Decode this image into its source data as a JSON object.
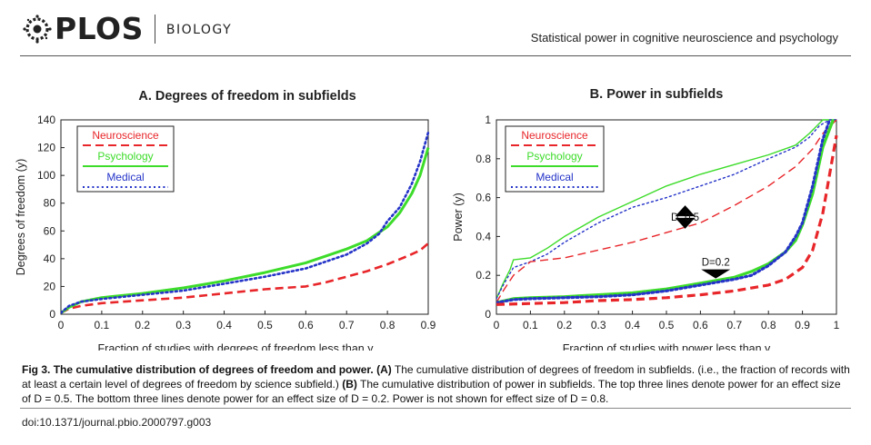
{
  "header": {
    "logo_text": "PLOS",
    "journal": "BIOLOGY",
    "running_title": "Statistical power in cognitive neuroscience and psychology"
  },
  "figure": {
    "caption_label": "Fig 3.",
    "caption_title": "The cumulative distribution of degrees of freedom and power.",
    "caption_a_tag": "(A)",
    "caption_a_text": "The cumulative distribution of degrees of freedom in subfields. (i.e., the fraction of records with at least a certain level of degrees of freedom by science subfield.)",
    "caption_b_tag": "(B)",
    "caption_b_text": "The cumulative distribution of power in subfields. The top three lines denote power for an effect size of D = 0.5. The bottom three lines denote power for an effect size of D = 0.2. Power is not shown for effect size of D = 0.8.",
    "doi": "doi:10.1371/journal.pbio.2000797.g003"
  },
  "colors": {
    "neuroscience": "#e8262a",
    "psychology": "#3ddc2a",
    "medical": "#2433c8",
    "annotation": "#000000"
  },
  "chart_data": [
    {
      "type": "line",
      "title": "A. Degrees of freedom in subfields",
      "xlabel": "Fraction of studies with degrees of freedom less than y",
      "ylabel": "Degrees of freedom (y)",
      "xlim": [
        0,
        0.9
      ],
      "ylim": [
        0,
        140
      ],
      "x_ticks": [
        "0",
        "0.1",
        "0.2",
        "0.3",
        "0.4",
        "0.5",
        "0.6",
        "0.7",
        "0.8",
        "0.9"
      ],
      "y_ticks": [
        "0",
        "20",
        "40",
        "60",
        "80",
        "100",
        "120",
        "140"
      ],
      "legend_position": "top-left",
      "series": [
        {
          "name": "Neuroscience",
          "color": "#e8262a",
          "dash": "dashed",
          "width": 2.6,
          "points": [
            [
              0,
              1
            ],
            [
              0.02,
              4
            ],
            [
              0.05,
              6
            ],
            [
              0.1,
              8
            ],
            [
              0.2,
              10
            ],
            [
              0.3,
              12
            ],
            [
              0.4,
              15
            ],
            [
              0.5,
              18
            ],
            [
              0.6,
              20
            ],
            [
              0.65,
              23
            ],
            [
              0.7,
              27
            ],
            [
              0.75,
              31
            ],
            [
              0.8,
              36
            ],
            [
              0.85,
              42
            ],
            [
              0.88,
              46
            ],
            [
              0.9,
              51
            ]
          ]
        },
        {
          "name": "Psychology",
          "color": "#3ddc2a",
          "dash": "solid",
          "width": 3,
          "points": [
            [
              0,
              1
            ],
            [
              0.02,
              5
            ],
            [
              0.05,
              9
            ],
            [
              0.1,
              12
            ],
            [
              0.2,
              15
            ],
            [
              0.3,
              19
            ],
            [
              0.4,
              24
            ],
            [
              0.5,
              30
            ],
            [
              0.6,
              37
            ],
            [
              0.65,
              42
            ],
            [
              0.7,
              47
            ],
            [
              0.75,
              53
            ],
            [
              0.8,
              63
            ],
            [
              0.83,
              73
            ],
            [
              0.86,
              87
            ],
            [
              0.88,
              100
            ],
            [
              0.9,
              120
            ]
          ]
        },
        {
          "name": "Medical",
          "color": "#2433c8",
          "dash": "dotted",
          "width": 2.6,
          "points": [
            [
              0,
              1
            ],
            [
              0.02,
              6
            ],
            [
              0.05,
              9
            ],
            [
              0.1,
              11
            ],
            [
              0.2,
              14
            ],
            [
              0.3,
              17
            ],
            [
              0.4,
              22
            ],
            [
              0.5,
              27
            ],
            [
              0.6,
              33
            ],
            [
              0.65,
              38
            ],
            [
              0.7,
              43
            ],
            [
              0.75,
              51
            ],
            [
              0.78,
              58
            ],
            [
              0.8,
              67
            ],
            [
              0.83,
              77
            ],
            [
              0.86,
              94
            ],
            [
              0.88,
              110
            ],
            [
              0.9,
              131
            ]
          ]
        }
      ]
    },
    {
      "type": "line",
      "title": "B. Power in subfields",
      "xlabel": "Fraction of studies with power less than y",
      "ylabel": "Power (y)",
      "xlim": [
        0,
        1
      ],
      "ylim": [
        0,
        1
      ],
      "x_ticks": [
        "0",
        "0.1",
        "0.2",
        "0.3",
        "0.4",
        "0.5",
        "0.6",
        "0.7",
        "0.8",
        "0.9",
        "1"
      ],
      "y_ticks": [
        "0",
        "0.2",
        "0.4",
        "0.6",
        "0.8",
        "1"
      ],
      "legend_position": "top-left",
      "annotations": [
        "D=0.5",
        "D=0.2"
      ],
      "series": [
        {
          "name": "Psychology",
          "group": "D=0.5",
          "color": "#3ddc2a",
          "dash": "solid",
          "width": 1.4,
          "points": [
            [
              0,
              0.08
            ],
            [
              0.02,
              0.16
            ],
            [
              0.04,
              0.23
            ],
            [
              0.05,
              0.28
            ],
            [
              0.1,
              0.29
            ],
            [
              0.15,
              0.34
            ],
            [
              0.2,
              0.4
            ],
            [
              0.3,
              0.5
            ],
            [
              0.4,
              0.58
            ],
            [
              0.5,
              0.66
            ],
            [
              0.6,
              0.72
            ],
            [
              0.7,
              0.77
            ],
            [
              0.8,
              0.82
            ],
            [
              0.88,
              0.87
            ],
            [
              0.92,
              0.93
            ],
            [
              0.96,
              1.0
            ],
            [
              1,
              1.0
            ]
          ]
        },
        {
          "name": "Medical",
          "group": "D=0.5",
          "color": "#2433c8",
          "dash": "dotted",
          "width": 1.4,
          "points": [
            [
              0,
              0.08
            ],
            [
              0.02,
              0.15
            ],
            [
              0.05,
              0.24
            ],
            [
              0.1,
              0.27
            ],
            [
              0.15,
              0.31
            ],
            [
              0.2,
              0.37
            ],
            [
              0.3,
              0.47
            ],
            [
              0.4,
              0.55
            ],
            [
              0.5,
              0.6
            ],
            [
              0.6,
              0.66
            ],
            [
              0.7,
              0.72
            ],
            [
              0.8,
              0.8
            ],
            [
              0.88,
              0.86
            ],
            [
              0.92,
              0.91
            ],
            [
              0.95,
              0.97
            ],
            [
              0.98,
              1.0
            ],
            [
              1,
              1.0
            ]
          ]
        },
        {
          "name": "Neuroscience",
          "group": "D=0.5",
          "color": "#e8262a",
          "dash": "dashed",
          "width": 1.4,
          "points": [
            [
              0,
              0.06
            ],
            [
              0.02,
              0.12
            ],
            [
              0.05,
              0.2
            ],
            [
              0.1,
              0.27
            ],
            [
              0.2,
              0.29
            ],
            [
              0.3,
              0.33
            ],
            [
              0.4,
              0.37
            ],
            [
              0.5,
              0.42
            ],
            [
              0.6,
              0.47
            ],
            [
              0.7,
              0.56
            ],
            [
              0.8,
              0.66
            ],
            [
              0.88,
              0.76
            ],
            [
              0.93,
              0.85
            ],
            [
              0.96,
              0.93
            ],
            [
              1,
              1.0
            ]
          ]
        },
        {
          "name": "Psychology",
          "group": "D=0.2",
          "color": "#3ddc2a",
          "dash": "solid",
          "width": 3.2,
          "points": [
            [
              0,
              0.06
            ],
            [
              0.05,
              0.08
            ],
            [
              0.1,
              0.085
            ],
            [
              0.2,
              0.09
            ],
            [
              0.3,
              0.1
            ],
            [
              0.4,
              0.11
            ],
            [
              0.5,
              0.13
            ],
            [
              0.6,
              0.16
            ],
            [
              0.7,
              0.19
            ],
            [
              0.75,
              0.22
            ],
            [
              0.8,
              0.26
            ],
            [
              0.85,
              0.32
            ],
            [
              0.88,
              0.38
            ],
            [
              0.9,
              0.46
            ],
            [
              0.93,
              0.62
            ],
            [
              0.96,
              0.86
            ],
            [
              0.99,
              1.0
            ]
          ]
        },
        {
          "name": "Medical",
          "group": "D=0.2",
          "color": "#2433c8",
          "dash": "dotted",
          "width": 3.2,
          "points": [
            [
              0,
              0.06
            ],
            [
              0.05,
              0.075
            ],
            [
              0.1,
              0.08
            ],
            [
              0.2,
              0.085
            ],
            [
              0.3,
              0.09
            ],
            [
              0.4,
              0.1
            ],
            [
              0.5,
              0.12
            ],
            [
              0.6,
              0.15
            ],
            [
              0.7,
              0.18
            ],
            [
              0.75,
              0.2
            ],
            [
              0.8,
              0.25
            ],
            [
              0.85,
              0.32
            ],
            [
              0.88,
              0.4
            ],
            [
              0.9,
              0.47
            ],
            [
              0.93,
              0.66
            ],
            [
              0.96,
              0.9
            ],
            [
              0.98,
              1.0
            ]
          ]
        },
        {
          "name": "Neuroscience",
          "group": "D=0.2",
          "color": "#e8262a",
          "dash": "dashed",
          "width": 3.2,
          "points": [
            [
              0,
              0.05
            ],
            [
              0.1,
              0.055
            ],
            [
              0.2,
              0.06
            ],
            [
              0.3,
              0.07
            ],
            [
              0.4,
              0.075
            ],
            [
              0.5,
              0.085
            ],
            [
              0.6,
              0.1
            ],
            [
              0.7,
              0.12
            ],
            [
              0.8,
              0.15
            ],
            [
              0.85,
              0.18
            ],
            [
              0.9,
              0.24
            ],
            [
              0.93,
              0.33
            ],
            [
              0.96,
              0.52
            ],
            [
              0.98,
              0.72
            ],
            [
              1,
              0.92
            ]
          ]
        }
      ]
    }
  ]
}
